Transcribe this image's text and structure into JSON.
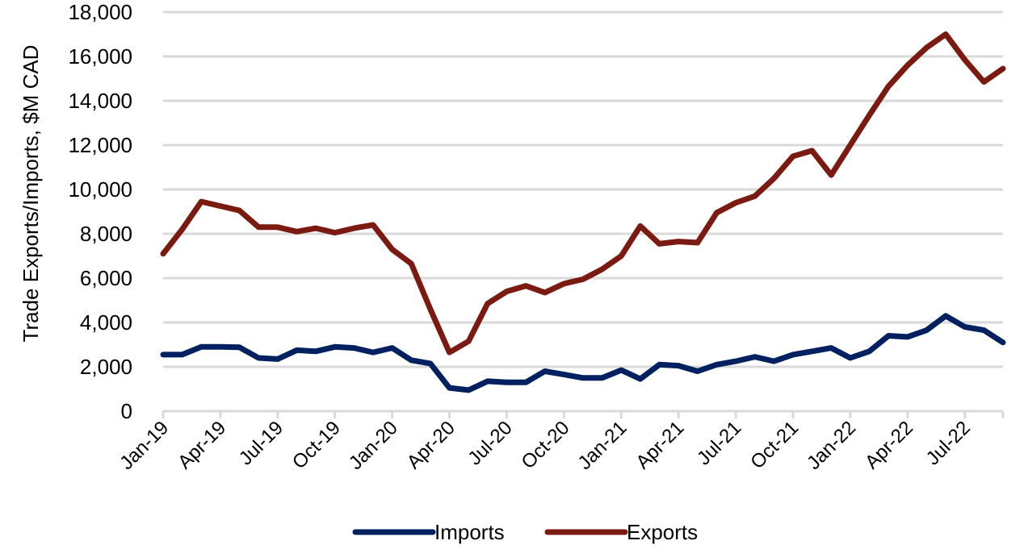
{
  "chart_data": {
    "type": "line",
    "ylabel": "Trade Exports/Imports, $M CAD",
    "ylim": [
      0,
      18000
    ],
    "yticks": [
      0,
      2000,
      4000,
      6000,
      8000,
      10000,
      12000,
      14000,
      16000,
      18000
    ],
    "ytick_labels": [
      "0",
      "2,000",
      "4,000",
      "6,000",
      "8,000",
      "10,000",
      "12,000",
      "14,000",
      "16,000",
      "18,000"
    ],
    "x": [
      "Jan-19",
      "Feb-19",
      "Mar-19",
      "Apr-19",
      "May-19",
      "Jun-19",
      "Jul-19",
      "Aug-19",
      "Sep-19",
      "Oct-19",
      "Nov-19",
      "Dec-19",
      "Jan-20",
      "Feb-20",
      "Mar-20",
      "Apr-20",
      "May-20",
      "Jun-20",
      "Jul-20",
      "Aug-20",
      "Sep-20",
      "Oct-20",
      "Nov-20",
      "Dec-20",
      "Jan-21",
      "Feb-21",
      "Mar-21",
      "Apr-21",
      "May-21",
      "Jun-21",
      "Jul-21",
      "Aug-21",
      "Sep-21",
      "Oct-21",
      "Nov-21",
      "Dec-21",
      "Jan-22",
      "Feb-22",
      "Mar-22",
      "Apr-22",
      "May-22",
      "Jun-22",
      "Jul-22",
      "Aug-22",
      "Sep-22"
    ],
    "xtick_labels": [
      {
        "index": 0,
        "label": "Jan-19"
      },
      {
        "index": 3,
        "label": "Apr-19"
      },
      {
        "index": 6,
        "label": "Jul-19"
      },
      {
        "index": 9,
        "label": "Oct-19"
      },
      {
        "index": 12,
        "label": "Jan-20"
      },
      {
        "index": 15,
        "label": "Apr-20"
      },
      {
        "index": 18,
        "label": "Jul-20"
      },
      {
        "index": 21,
        "label": "Oct-20"
      },
      {
        "index": 24,
        "label": "Jan-21"
      },
      {
        "index": 27,
        "label": "Apr-21"
      },
      {
        "index": 30,
        "label": "Jul-21"
      },
      {
        "index": 33,
        "label": "Oct-21"
      },
      {
        "index": 36,
        "label": "Jan-22"
      },
      {
        "index": 39,
        "label": "Apr-22"
      },
      {
        "index": 42,
        "label": "Jul-22"
      }
    ],
    "series": [
      {
        "name": "Imports",
        "color": "#002060",
        "values": [
          2550,
          2550,
          2900,
          2900,
          2880,
          2400,
          2350,
          2750,
          2700,
          2900,
          2850,
          2650,
          2850,
          2300,
          2150,
          1050,
          950,
          1350,
          1300,
          1300,
          1800,
          1650,
          1500,
          1500,
          1850,
          1450,
          2100,
          2050,
          1800,
          2100,
          2250,
          2450,
          2250,
          2550,
          2700,
          2850,
          2400,
          2700,
          3400,
          3350,
          3650,
          4300,
          3800,
          3650,
          3100
        ]
      },
      {
        "name": "Exports",
        "color": "#7b1a10",
        "values": [
          7100,
          8200,
          9450,
          9250,
          9050,
          8300,
          8300,
          8100,
          8250,
          8050,
          8250,
          8400,
          7300,
          6650,
          4600,
          2650,
          3150,
          4850,
          5400,
          5650,
          5350,
          5750,
          5950,
          6400,
          7000,
          8350,
          7550,
          7650,
          7600,
          8950,
          9400,
          9700,
          10500,
          11500,
          11750,
          10650,
          12000,
          13350,
          14650,
          15600,
          16400,
          17000,
          15850,
          14850,
          15450
        ]
      }
    ],
    "legend_position": "bottom",
    "grid": true
  }
}
